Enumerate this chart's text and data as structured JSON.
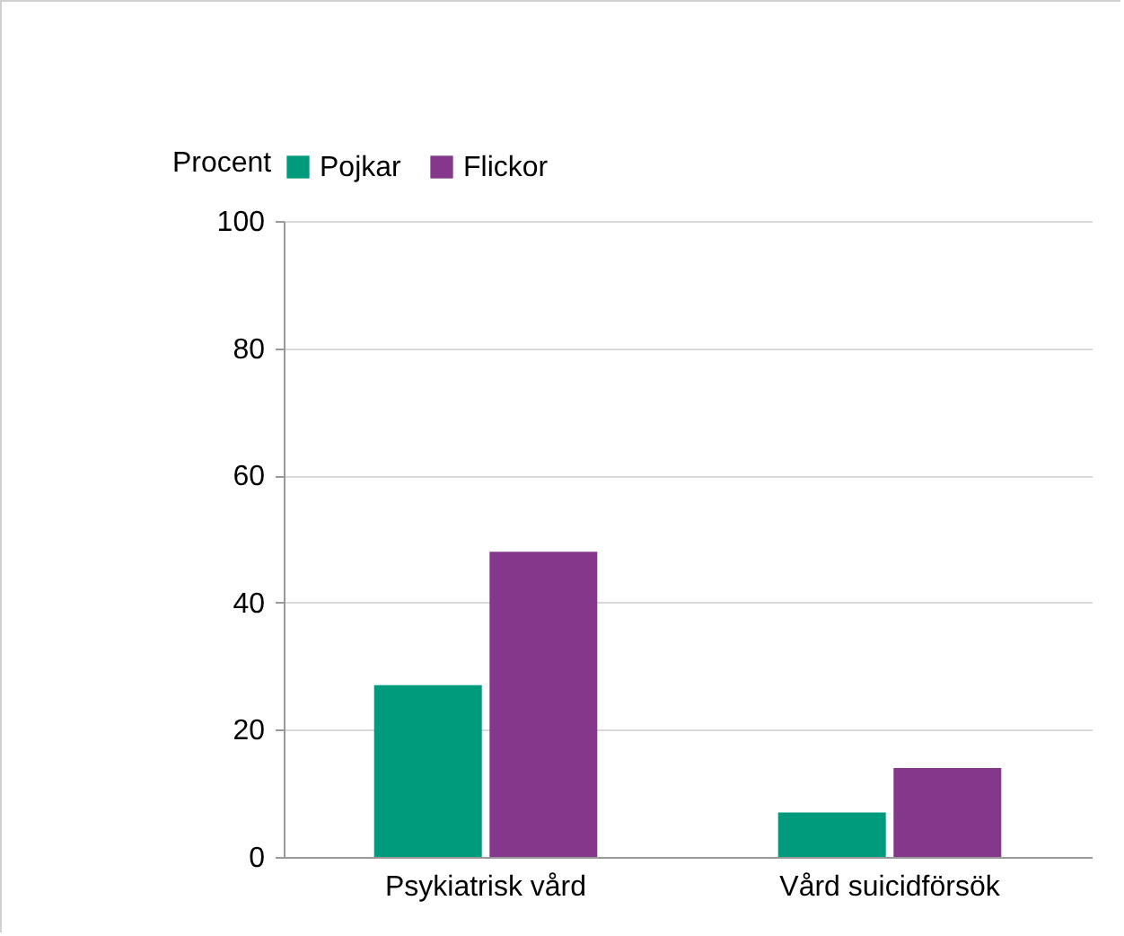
{
  "chart_data": {
    "type": "bar",
    "ylabel": "Procent",
    "categories": [
      "Psykiatrisk vård",
      "Vård suicidförsök"
    ],
    "series": [
      {
        "name": "Pojkar",
        "color": "#009b7d",
        "values": [
          27,
          7
        ]
      },
      {
        "name": "Flickor",
        "color": "#84378b",
        "values": [
          48,
          14
        ]
      }
    ],
    "ylim": [
      0,
      100
    ],
    "yticks": [
      0,
      20,
      40,
      60,
      80,
      100
    ],
    "grid": "y",
    "legend": "top"
  }
}
